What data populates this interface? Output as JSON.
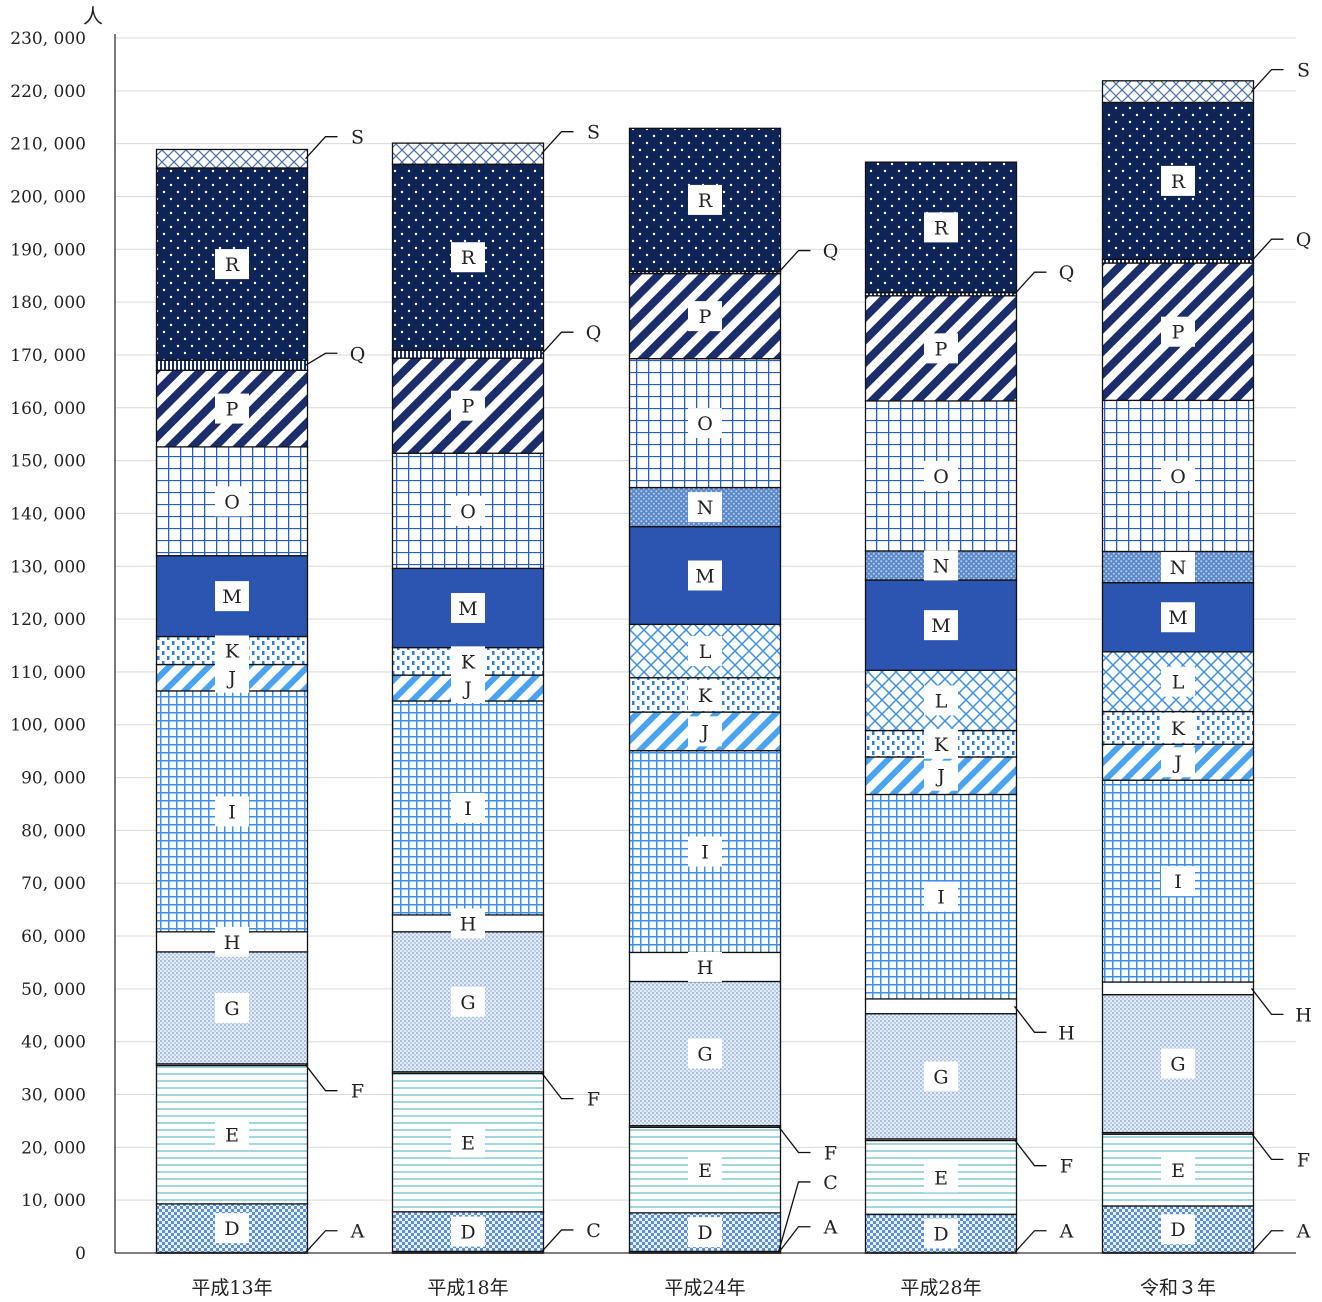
{
  "chart_data": {
    "type": "bar",
    "stacked": true,
    "unit_label": "人",
    "categories": [
      "平成13年",
      "平成18年",
      "平成24年",
      "平成28年",
      "令和３年"
    ],
    "ylim": [
      0,
      230000
    ],
    "y_ticks": [
      {
        "value": 0,
        "label": "0"
      },
      {
        "value": 10000,
        "label": "10, 000"
      },
      {
        "value": 20000,
        "label": "20, 000"
      },
      {
        "value": 30000,
        "label": "30, 000"
      },
      {
        "value": 40000,
        "label": "40, 000"
      },
      {
        "value": 50000,
        "label": "50, 000"
      },
      {
        "value": 60000,
        "label": "60, 000"
      },
      {
        "value": 70000,
        "label": "70, 000"
      },
      {
        "value": 80000,
        "label": "80, 000"
      },
      {
        "value": 90000,
        "label": "90, 000"
      },
      {
        "value": 100000,
        "label": "100, 000"
      },
      {
        "value": 110000,
        "label": "110, 000"
      },
      {
        "value": 120000,
        "label": "120, 000"
      },
      {
        "value": 130000,
        "label": "130, 000"
      },
      {
        "value": 140000,
        "label": "140, 000"
      },
      {
        "value": 150000,
        "label": "150, 000"
      },
      {
        "value": 160000,
        "label": "160, 000"
      },
      {
        "value": 170000,
        "label": "170, 000"
      },
      {
        "value": 180000,
        "label": "180, 000"
      },
      {
        "value": 190000,
        "label": "190, 000"
      },
      {
        "value": 200000,
        "label": "200, 000"
      },
      {
        "value": 210000,
        "label": "210, 000"
      },
      {
        "value": 220000,
        "label": "220, 000"
      },
      {
        "value": 230000,
        "label": "230, 000"
      }
    ],
    "grid": true,
    "legend": "none",
    "series": [
      {
        "name": "A",
        "values": [
          100,
          100,
          100,
          100,
          100
        ]
      },
      {
        "name": "C",
        "values": [
          0,
          200,
          200,
          0,
          0
        ]
      },
      {
        "name": "D",
        "values": [
          9200,
          7500,
          7300,
          7200,
          8800
        ]
      },
      {
        "name": "E",
        "values": [
          26200,
          26200,
          16200,
          14000,
          13600
        ]
      },
      {
        "name": "F",
        "values": [
          300,
          300,
          300,
          300,
          300
        ]
      },
      {
        "name": "G",
        "values": [
          21200,
          26500,
          27300,
          23700,
          26100
        ]
      },
      {
        "name": "H",
        "values": [
          3800,
          3200,
          5500,
          2800,
          2400
        ]
      },
      {
        "name": "I",
        "values": [
          45600,
          40500,
          38200,
          38700,
          38200
        ]
      },
      {
        "name": "J",
        "values": [
          5000,
          4900,
          7300,
          7100,
          6800
        ]
      },
      {
        "name": "K",
        "values": [
          5300,
          5200,
          6500,
          5000,
          6200
        ]
      },
      {
        "name": "L",
        "values": [
          0,
          0,
          10100,
          11400,
          11300
        ]
      },
      {
        "name": "M",
        "values": [
          15300,
          15000,
          18500,
          17100,
          13100
        ]
      },
      {
        "name": "N",
        "values": [
          0,
          0,
          7400,
          5500,
          5900
        ]
      },
      {
        "name": "O",
        "values": [
          20600,
          21800,
          24400,
          28400,
          28600
        ]
      },
      {
        "name": "P",
        "values": [
          14500,
          18000,
          16100,
          19900,
          26000
        ]
      },
      {
        "name": "Q",
        "values": [
          1900,
          1500,
          400,
          600,
          700
        ]
      },
      {
        "name": "R",
        "values": [
          36400,
          35200,
          27100,
          24700,
          29700
        ]
      },
      {
        "name": "S",
        "values": [
          3500,
          4000,
          0,
          0,
          4100
        ]
      }
    ],
    "callouts": [
      {
        "category": 0,
        "label": "A"
      },
      {
        "category": 0,
        "label": "F"
      },
      {
        "category": 0,
        "label": "Q"
      },
      {
        "category": 0,
        "label": "S"
      },
      {
        "category": 1,
        "label": "C"
      },
      {
        "category": 1,
        "label": "F"
      },
      {
        "category": 1,
        "label": "Q"
      },
      {
        "category": 1,
        "label": "S"
      },
      {
        "category": 2,
        "label": "A"
      },
      {
        "category": 2,
        "label": "C"
      },
      {
        "category": 2,
        "label": "F"
      },
      {
        "category": 2,
        "label": "Q"
      },
      {
        "category": 3,
        "label": "A"
      },
      {
        "category": 3,
        "label": "F"
      },
      {
        "category": 3,
        "label": "H"
      },
      {
        "category": 3,
        "label": "Q"
      },
      {
        "category": 4,
        "label": "A"
      },
      {
        "category": 4,
        "label": "F"
      },
      {
        "category": 4,
        "label": "H"
      },
      {
        "category": 4,
        "label": "Q"
      },
      {
        "category": 4,
        "label": "S"
      }
    ],
    "series_style": {
      "A": {
        "fill": "#ffffff",
        "pattern": "none"
      },
      "C": {
        "fill": "#ffffff",
        "pattern": "none"
      },
      "D": {
        "fill": "#e8f0fb",
        "pattern": "small-check",
        "color": "#5b8fd6"
      },
      "E": {
        "fill": "#ffffff",
        "pattern": "horizontal-lines",
        "color": "#7cc3cf"
      },
      "F": {
        "fill": "#ffffff",
        "pattern": "none"
      },
      "G": {
        "fill": "#dde7f5",
        "pattern": "fine-dots",
        "color": "#8aa9d6"
      },
      "H": {
        "fill": "#ffffff",
        "pattern": "none"
      },
      "I": {
        "fill": "#ffffff",
        "pattern": "grid",
        "color": "#3b8fe6"
      },
      "J": {
        "fill": "#ffffff",
        "pattern": "wide-diagonal",
        "color": "#4aa3f0"
      },
      "K": {
        "fill": "#ffffff",
        "pattern": "dashed-vertical",
        "color": "#2f7fd8"
      },
      "L": {
        "fill": "#ffffff",
        "pattern": "diamond-cross",
        "color": "#3b8fe6"
      },
      "M": {
        "fill": "#2b55b0",
        "pattern": "none"
      },
      "N": {
        "fill": "#5b88c8",
        "pattern": "dense-dots",
        "color": "#a8c4ec"
      },
      "O": {
        "fill": "#ffffff",
        "pattern": "large-grid",
        "color": "#2a5fb8"
      },
      "P": {
        "fill": "#ffffff",
        "pattern": "dark-diagonal",
        "color": "#1b2d6b"
      },
      "Q": {
        "fill": "#ffffff",
        "pattern": "vertical-stripes",
        "color": "#1b2d6b"
      },
      "R": {
        "fill": "#0f2456",
        "pattern": "white-dots",
        "color": "#ffffff"
      },
      "S": {
        "fill": "#ffffff",
        "pattern": "light-cross",
        "color": "#4a6fa8"
      }
    }
  }
}
